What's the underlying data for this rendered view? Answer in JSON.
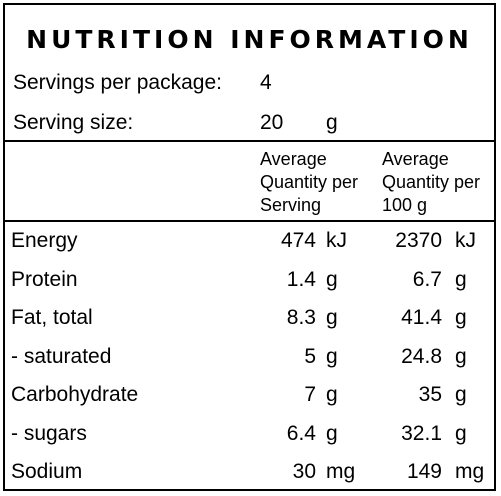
{
  "panel": {
    "title": "NUTRITION INFORMATION",
    "servings_per_package": {
      "label": "Servings per package:",
      "value": "4"
    },
    "serving_size": {
      "label": "Serving size:",
      "value": "20",
      "unit": "g"
    },
    "header": {
      "per_serving": [
        "Average",
        "Quantity per",
        "Serving"
      ],
      "per_100g": [
        "Average",
        "Quantity per",
        "100 g"
      ]
    },
    "rows": [
      {
        "label": "Energy",
        "serving_value": "474",
        "serving_unit": "kJ",
        "per100_value": "2370",
        "per100_unit": "kJ"
      },
      {
        "label": "Protein",
        "serving_value": "1.4",
        "serving_unit": "g",
        "per100_value": "6.7",
        "per100_unit": "g"
      },
      {
        "label": "Fat, total",
        "serving_value": "8.3",
        "serving_unit": "g",
        "per100_value": "41.4",
        "per100_unit": "g"
      },
      {
        "label": "- saturated",
        "serving_value": "5",
        "serving_unit": "g",
        "per100_value": "24.8",
        "per100_unit": "g"
      },
      {
        "label": "Carbohydrate",
        "serving_value": "7",
        "serving_unit": "g",
        "per100_value": "35",
        "per100_unit": "g"
      },
      {
        "label": "- sugars",
        "serving_value": "6.4",
        "serving_unit": "g",
        "per100_value": "32.1",
        "per100_unit": "g"
      },
      {
        "label": "Sodium",
        "serving_value": "30",
        "serving_unit": "mg",
        "per100_value": "149",
        "per100_unit": "mg"
      }
    ]
  }
}
